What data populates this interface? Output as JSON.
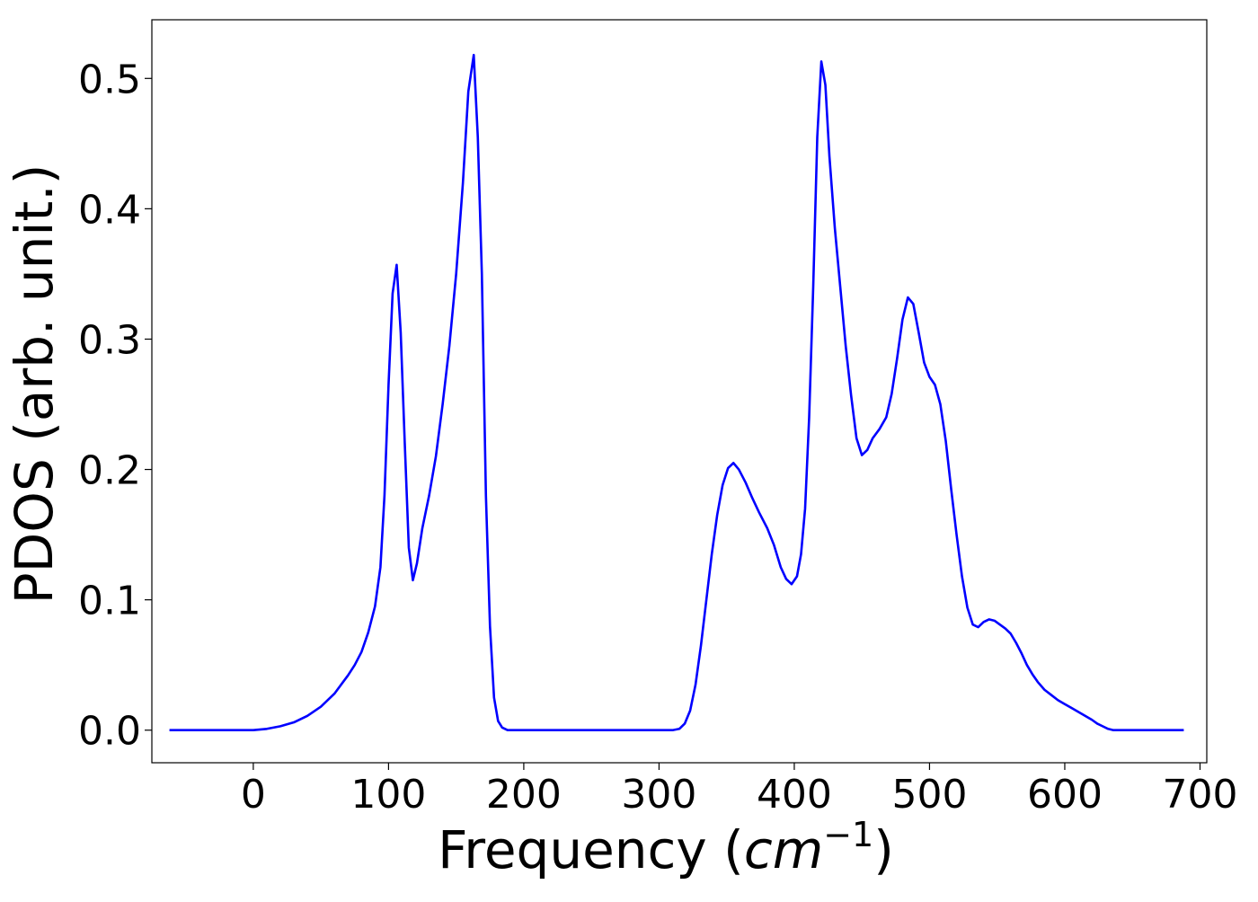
{
  "chart_data": {
    "type": "line",
    "title": "",
    "xlabel": {
      "prefix": "Frequency (",
      "italic": "cm",
      "superscript": "−1",
      "suffix": ")"
    },
    "ylabel": "PDOS (arb. unit.)",
    "xlim": [
      -75,
      705
    ],
    "ylim": [
      -0.025,
      0.545
    ],
    "x_ticks": [
      0,
      100,
      200,
      300,
      400,
      500,
      600,
      700
    ],
    "x_tick_labels": [
      "0",
      "100",
      "200",
      "300",
      "400",
      "500",
      "600",
      "700"
    ],
    "y_ticks": [
      0.0,
      0.1,
      0.2,
      0.3,
      0.4,
      0.5
    ],
    "y_tick_labels": [
      "0.0",
      "0.1",
      "0.2",
      "0.3",
      "0.4",
      "0.5"
    ],
    "grid": false,
    "legend": "none",
    "series": [
      {
        "color": "#0000ff",
        "points": [
          [
            -62,
            0.0
          ],
          [
            -40,
            0.0
          ],
          [
            -20,
            0.0
          ],
          [
            0,
            0.0
          ],
          [
            10,
            0.001
          ],
          [
            20,
            0.003
          ],
          [
            30,
            0.006
          ],
          [
            40,
            0.011
          ],
          [
            50,
            0.018
          ],
          [
            60,
            0.028
          ],
          [
            70,
            0.042
          ],
          [
            75,
            0.05
          ],
          [
            80,
            0.06
          ],
          [
            85,
            0.075
          ],
          [
            90,
            0.095
          ],
          [
            94,
            0.125
          ],
          [
            97,
            0.18
          ],
          [
            100,
            0.265
          ],
          [
            103,
            0.335
          ],
          [
            106,
            0.357
          ],
          [
            109,
            0.305
          ],
          [
            112,
            0.22
          ],
          [
            115,
            0.14
          ],
          [
            118,
            0.115
          ],
          [
            121,
            0.128
          ],
          [
            125,
            0.155
          ],
          [
            130,
            0.18
          ],
          [
            135,
            0.21
          ],
          [
            140,
            0.25
          ],
          [
            145,
            0.295
          ],
          [
            150,
            0.35
          ],
          [
            155,
            0.42
          ],
          [
            159,
            0.49
          ],
          [
            163,
            0.518
          ],
          [
            166,
            0.455
          ],
          [
            169,
            0.35
          ],
          [
            172,
            0.18
          ],
          [
            175,
            0.08
          ],
          [
            178,
            0.025
          ],
          [
            181,
            0.007
          ],
          [
            184,
            0.002
          ],
          [
            188,
            0.0
          ],
          [
            200,
            0.0
          ],
          [
            250,
            0.0
          ],
          [
            300,
            0.0
          ],
          [
            310,
            0.0
          ],
          [
            315,
            0.001
          ],
          [
            319,
            0.005
          ],
          [
            323,
            0.015
          ],
          [
            327,
            0.035
          ],
          [
            331,
            0.065
          ],
          [
            335,
            0.1
          ],
          [
            339,
            0.135
          ],
          [
            343,
            0.165
          ],
          [
            347,
            0.188
          ],
          [
            351,
            0.201
          ],
          [
            355,
            0.205
          ],
          [
            359,
            0.2
          ],
          [
            364,
            0.19
          ],
          [
            369,
            0.178
          ],
          [
            374,
            0.167
          ],
          [
            380,
            0.155
          ],
          [
            385,
            0.142
          ],
          [
            390,
            0.125
          ],
          [
            394,
            0.116
          ],
          [
            398,
            0.112
          ],
          [
            402,
            0.118
          ],
          [
            405,
            0.135
          ],
          [
            408,
            0.17
          ],
          [
            411,
            0.24
          ],
          [
            414,
            0.34
          ],
          [
            417,
            0.455
          ],
          [
            420,
            0.513
          ],
          [
            423,
            0.495
          ],
          [
            426,
            0.44
          ],
          [
            430,
            0.385
          ],
          [
            434,
            0.34
          ],
          [
            438,
            0.295
          ],
          [
            442,
            0.257
          ],
          [
            446,
            0.224
          ],
          [
            450,
            0.211
          ],
          [
            454,
            0.215
          ],
          [
            458,
            0.224
          ],
          [
            463,
            0.231
          ],
          [
            468,
            0.24
          ],
          [
            472,
            0.258
          ],
          [
            476,
            0.285
          ],
          [
            480,
            0.315
          ],
          [
            484,
            0.332
          ],
          [
            488,
            0.327
          ],
          [
            492,
            0.305
          ],
          [
            496,
            0.282
          ],
          [
            500,
            0.271
          ],
          [
            504,
            0.265
          ],
          [
            508,
            0.25
          ],
          [
            512,
            0.222
          ],
          [
            516,
            0.185
          ],
          [
            520,
            0.15
          ],
          [
            524,
            0.118
          ],
          [
            528,
            0.094
          ],
          [
            532,
            0.081
          ],
          [
            536,
            0.079
          ],
          [
            540,
            0.083
          ],
          [
            544,
            0.085
          ],
          [
            548,
            0.084
          ],
          [
            552,
            0.081
          ],
          [
            556,
            0.078
          ],
          [
            560,
            0.074
          ],
          [
            564,
            0.067
          ],
          [
            568,
            0.059
          ],
          [
            572,
            0.05
          ],
          [
            576,
            0.043
          ],
          [
            580,
            0.037
          ],
          [
            585,
            0.031
          ],
          [
            590,
            0.027
          ],
          [
            595,
            0.023
          ],
          [
            600,
            0.02
          ],
          [
            605,
            0.017
          ],
          [
            610,
            0.014
          ],
          [
            615,
            0.011
          ],
          [
            620,
            0.008
          ],
          [
            624,
            0.005
          ],
          [
            628,
            0.003
          ],
          [
            632,
            0.001
          ],
          [
            636,
            0.0
          ],
          [
            650,
            0.0
          ],
          [
            670,
            0.0
          ],
          [
            688,
            0.0
          ]
        ]
      }
    ]
  }
}
